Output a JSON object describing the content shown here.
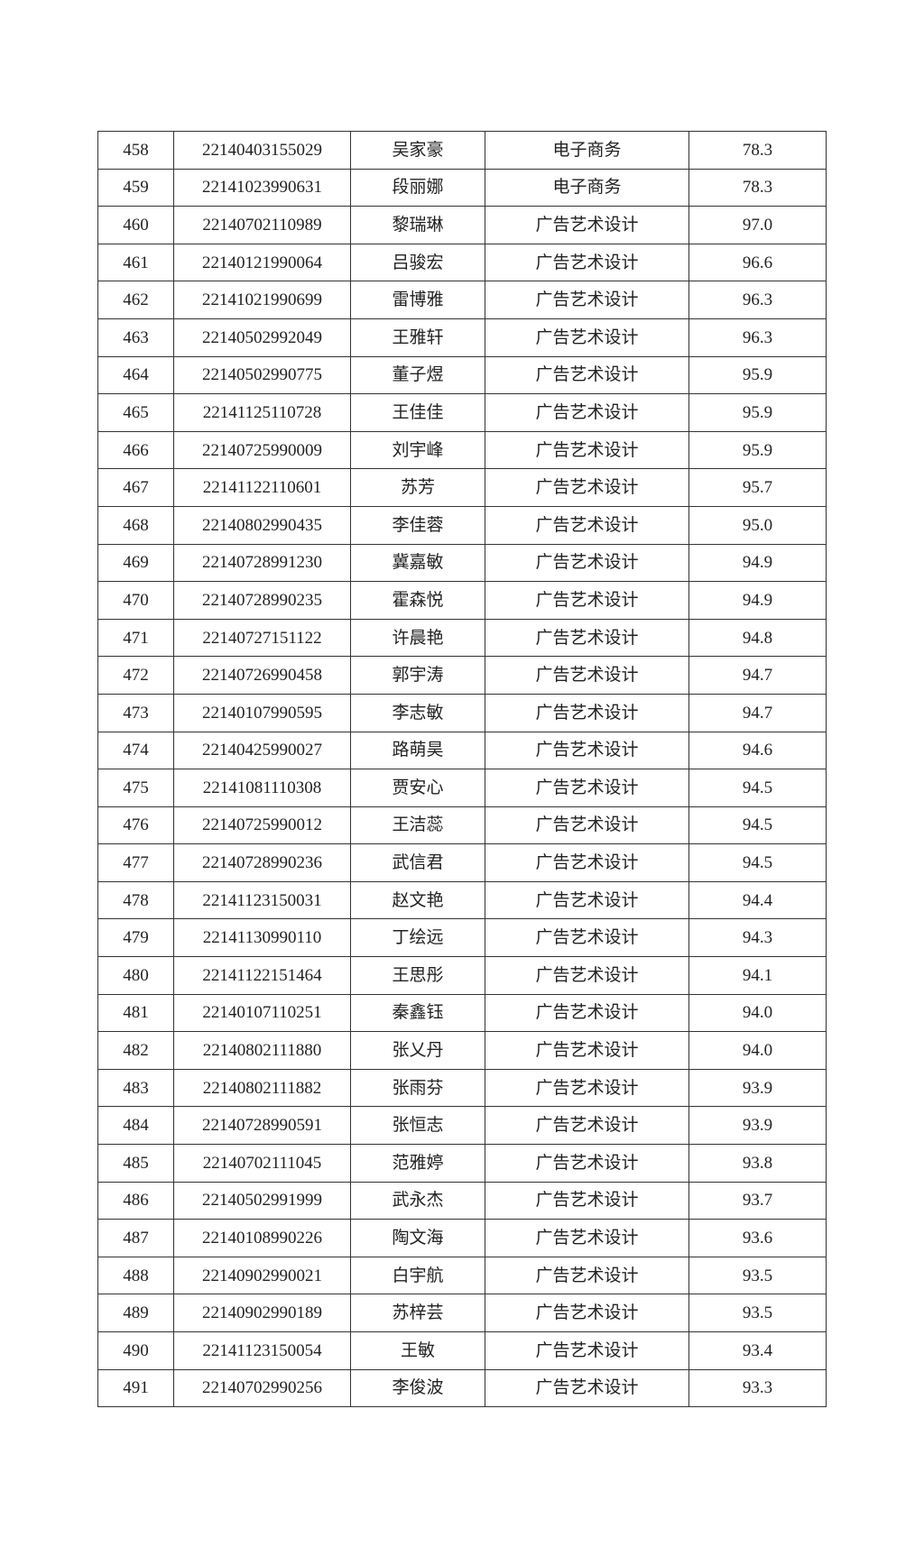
{
  "rows": [
    [
      "458",
      "22140403155029",
      "吴家豪",
      "电子商务",
      "78.3"
    ],
    [
      "459",
      "22141023990631",
      "段丽娜",
      "电子商务",
      "78.3"
    ],
    [
      "460",
      "22140702110989",
      "黎瑞琳",
      "广告艺术设计",
      "97.0"
    ],
    [
      "461",
      "22140121990064",
      "吕骏宏",
      "广告艺术设计",
      "96.6"
    ],
    [
      "462",
      "22141021990699",
      "雷博雅",
      "广告艺术设计",
      "96.3"
    ],
    [
      "463",
      "22140502992049",
      "王雅轩",
      "广告艺术设计",
      "96.3"
    ],
    [
      "464",
      "22140502990775",
      "董子煜",
      "广告艺术设计",
      "95.9"
    ],
    [
      "465",
      "22141125110728",
      "王佳佳",
      "广告艺术设计",
      "95.9"
    ],
    [
      "466",
      "22140725990009",
      "刘宇峰",
      "广告艺术设计",
      "95.9"
    ],
    [
      "467",
      "22141122110601",
      "苏芳",
      "广告艺术设计",
      "95.7"
    ],
    [
      "468",
      "22140802990435",
      "李佳蓉",
      "广告艺术设计",
      "95.0"
    ],
    [
      "469",
      "22140728991230",
      "冀嘉敏",
      "广告艺术设计",
      "94.9"
    ],
    [
      "470",
      "22140728990235",
      "霍森悦",
      "广告艺术设计",
      "94.9"
    ],
    [
      "471",
      "22140727151122",
      "许晨艳",
      "广告艺术设计",
      "94.8"
    ],
    [
      "472",
      "22140726990458",
      "郭宇涛",
      "广告艺术设计",
      "94.7"
    ],
    [
      "473",
      "22140107990595",
      "李志敏",
      "广告艺术设计",
      "94.7"
    ],
    [
      "474",
      "22140425990027",
      "路萌昊",
      "广告艺术设计",
      "94.6"
    ],
    [
      "475",
      "22141081110308",
      "贾安心",
      "广告艺术设计",
      "94.5"
    ],
    [
      "476",
      "22140725990012",
      "王洁蕊",
      "广告艺术设计",
      "94.5"
    ],
    [
      "477",
      "22140728990236",
      "武信君",
      "广告艺术设计",
      "94.5"
    ],
    [
      "478",
      "22141123150031",
      "赵文艳",
      "广告艺术设计",
      "94.4"
    ],
    [
      "479",
      "22141130990110",
      "丁绘远",
      "广告艺术设计",
      "94.3"
    ],
    [
      "480",
      "22141122151464",
      "王思彤",
      "广告艺术设计",
      "94.1"
    ],
    [
      "481",
      "22140107110251",
      "秦鑫钰",
      "广告艺术设计",
      "94.0"
    ],
    [
      "482",
      "22140802111880",
      "张乂丹",
      "广告艺术设计",
      "94.0"
    ],
    [
      "483",
      "22140802111882",
      "张雨芬",
      "广告艺术设计",
      "93.9"
    ],
    [
      "484",
      "22140728990591",
      "张恒志",
      "广告艺术设计",
      "93.9"
    ],
    [
      "485",
      "22140702111045",
      "范雅婷",
      "广告艺术设计",
      "93.8"
    ],
    [
      "486",
      "22140502991999",
      "武永杰",
      "广告艺术设计",
      "93.7"
    ],
    [
      "487",
      "22140108990226",
      "陶文海",
      "广告艺术设计",
      "93.6"
    ],
    [
      "488",
      "22140902990021",
      "白宇航",
      "广告艺术设计",
      "93.5"
    ],
    [
      "489",
      "22140902990189",
      "苏梓芸",
      "广告艺术设计",
      "93.5"
    ],
    [
      "490",
      "22141123150054",
      "王敏",
      "广告艺术设计",
      "93.4"
    ],
    [
      "491",
      "22140702990256",
      "李俊波",
      "广告艺术设计",
      "93.3"
    ]
  ]
}
